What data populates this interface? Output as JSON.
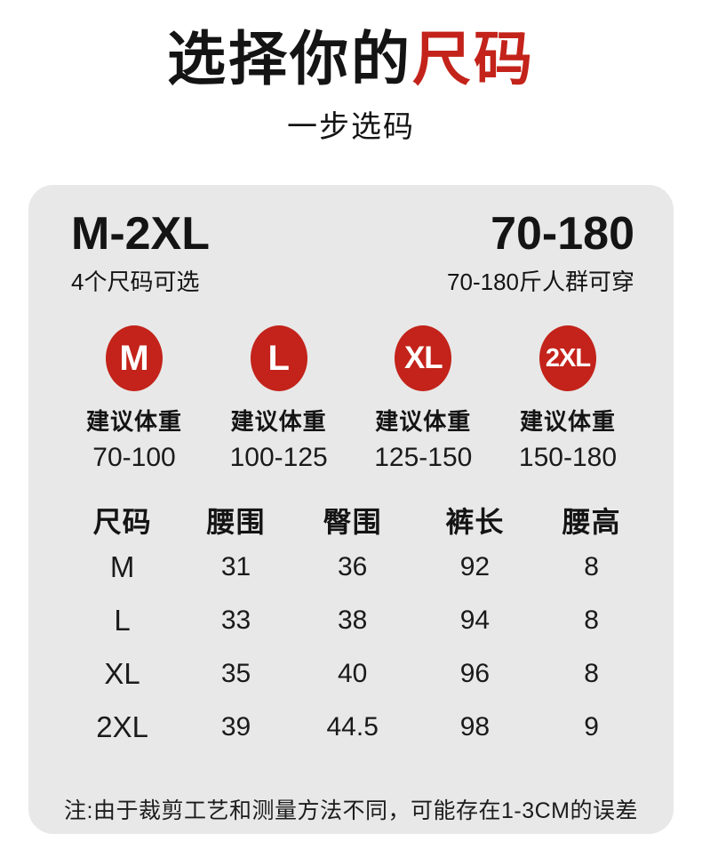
{
  "header": {
    "title_black": "选择你的",
    "title_red": "尺码",
    "subtitle": "一步选码"
  },
  "summary": {
    "left": {
      "value": "M-2XL",
      "caption": "4个尺码可选"
    },
    "right": {
      "value": "70-180",
      "caption": "70-180斤人群可穿"
    }
  },
  "sizes": [
    {
      "label": "M",
      "hint": "建议体重",
      "range": "70-100"
    },
    {
      "label": "L",
      "hint": "建议体重",
      "range": "100-125"
    },
    {
      "label": "XL",
      "hint": "建议体重",
      "range": "125-150"
    },
    {
      "label": "2XL",
      "hint": "建议体重",
      "range": "150-180"
    }
  ],
  "table": {
    "headers": [
      "尺码",
      "腰围",
      "臀围",
      "裤长",
      "腰高"
    ],
    "rows": [
      [
        "M",
        "31",
        "36",
        "92",
        "8"
      ],
      [
        "L",
        "33",
        "38",
        "94",
        "8"
      ],
      [
        "XL",
        "35",
        "40",
        "96",
        "8"
      ],
      [
        "2XL",
        "39",
        "44.5",
        "98",
        "9"
      ]
    ]
  },
  "note": "注:由于裁剪工艺和测量方法不同，可能存在1-3CM的误差",
  "colors": {
    "accent_red": "#c3231a",
    "card_bg": "#e8e8e8"
  }
}
